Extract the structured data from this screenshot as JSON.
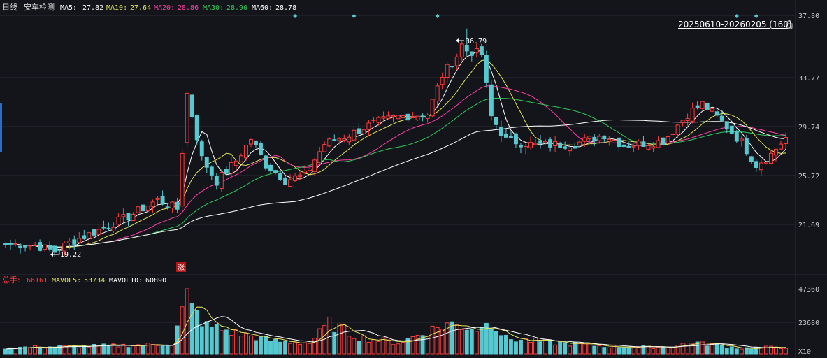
{
  "header": {
    "period": "日线",
    "stock_name": "安车检测",
    "ma": [
      {
        "label": "MA5:",
        "value": "27.82",
        "color": "#ffffff"
      },
      {
        "label": "MA10:",
        "value": "27.64",
        "color": "#e6e65a"
      },
      {
        "label": "MA20:",
        "value": "28.86",
        "color": "#ff3fa6"
      },
      {
        "label": "MA30:",
        "value": "28.90",
        "color": "#2fc95a"
      },
      {
        "label": "MA60:",
        "value": "28.78",
        "color": "#ffffff"
      }
    ],
    "range_label": "20250610-20260205 (160)"
  },
  "volume_header": {
    "items": [
      {
        "label": "总手:",
        "value": "66161",
        "color": "#ff3b3b"
      },
      {
        "label": "MAVOL5:",
        "value": "53734",
        "color": "#e6e65a"
      },
      {
        "label": "MAVOL10:",
        "value": "60890",
        "color": "#ffffff"
      }
    ]
  },
  "markers": {
    "high_label": "36.79",
    "low_label": "19.22",
    "limit_up_tag": "涨"
  },
  "colors": {
    "background": "#14151b",
    "up": "#ff3b3b",
    "down": "#56c8d0",
    "grid": "#2c2c34"
  },
  "chart_data": [
    {
      "type": "candlestick",
      "y_ticks": [
        "37.80",
        "33.77",
        "29.74",
        "25.72",
        "21.69"
      ],
      "ylim": [
        19.22,
        36.79
      ],
      "n_bars": 160,
      "close_anchors": [
        {
          "bar": 0,
          "close": 20.2
        },
        {
          "bar": 6,
          "close": 20.1
        },
        {
          "bar": 10,
          "close": 19.6
        },
        {
          "bar": 13,
          "close": 20.3
        },
        {
          "bar": 18,
          "close": 21.1
        },
        {
          "bar": 25,
          "close": 22.3
        },
        {
          "bar": 31,
          "close": 23.6
        },
        {
          "bar": 35,
          "close": 22.9
        },
        {
          "bar": 37,
          "close": 31.8
        },
        {
          "bar": 40,
          "close": 26.8
        },
        {
          "bar": 43,
          "close": 25.0
        },
        {
          "bar": 47,
          "close": 26.6
        },
        {
          "bar": 50,
          "close": 28.3
        },
        {
          "bar": 53,
          "close": 26.3
        },
        {
          "bar": 57,
          "close": 25.1
        },
        {
          "bar": 61,
          "close": 25.5
        },
        {
          "bar": 65,
          "close": 27.9
        },
        {
          "bar": 70,
          "close": 28.6
        },
        {
          "bar": 75,
          "close": 29.5
        },
        {
          "bar": 80,
          "close": 30.0
        },
        {
          "bar": 86,
          "close": 30.2
        },
        {
          "bar": 89,
          "close": 33.2
        },
        {
          "bar": 93,
          "close": 35.2
        },
        {
          "bar": 97,
          "close": 34.8
        },
        {
          "bar": 99,
          "close": 30.0
        },
        {
          "bar": 102,
          "close": 28.2
        },
        {
          "bar": 108,
          "close": 27.8
        },
        {
          "bar": 116,
          "close": 27.9
        },
        {
          "bar": 122,
          "close": 28.6
        },
        {
          "bar": 126,
          "close": 27.8
        },
        {
          "bar": 134,
          "close": 28.1
        },
        {
          "bar": 139,
          "close": 30.2
        },
        {
          "bar": 142,
          "close": 31.0
        },
        {
          "bar": 146,
          "close": 29.6
        },
        {
          "bar": 150,
          "close": 28.0
        },
        {
          "bar": 153,
          "close": 26.3
        },
        {
          "bar": 156,
          "close": 27.1
        },
        {
          "bar": 159,
          "close": 28.4
        }
      ],
      "series": [
        {
          "name": "MA5",
          "value": 27.82
        },
        {
          "name": "MA10",
          "value": 27.64
        },
        {
          "name": "MA20",
          "value": 28.86
        },
        {
          "name": "MA30",
          "value": 28.9
        },
        {
          "name": "MA60",
          "value": 28.78
        }
      ]
    },
    {
      "type": "bar",
      "y_ticks": [
        "47360",
        "23680",
        "X10"
      ],
      "ylim": [
        0,
        47360
      ],
      "volume_anchors": [
        {
          "bar": 0,
          "vol": 4500
        },
        {
          "bar": 20,
          "vol": 5800
        },
        {
          "bar": 34,
          "vol": 7000
        },
        {
          "bar": 36,
          "vol": 31000
        },
        {
          "bar": 37,
          "vol": 47360
        },
        {
          "bar": 38,
          "vol": 33000
        },
        {
          "bar": 41,
          "vol": 20000
        },
        {
          "bar": 46,
          "vol": 16000
        },
        {
          "bar": 55,
          "vol": 9000
        },
        {
          "bar": 62,
          "vol": 8000
        },
        {
          "bar": 66,
          "vol": 22000
        },
        {
          "bar": 72,
          "vol": 12000
        },
        {
          "bar": 80,
          "vol": 8000
        },
        {
          "bar": 90,
          "vol": 22000
        },
        {
          "bar": 97,
          "vol": 18000
        },
        {
          "bar": 98,
          "vol": 27000
        },
        {
          "bar": 102,
          "vol": 11000
        },
        {
          "bar": 112,
          "vol": 8000
        },
        {
          "bar": 122,
          "vol": 5500
        },
        {
          "bar": 135,
          "vol": 5000
        },
        {
          "bar": 140,
          "vol": 8500
        },
        {
          "bar": 150,
          "vol": 4000
        },
        {
          "bar": 159,
          "vol": 5000
        }
      ],
      "series": [
        {
          "name": "总手",
          "value": 66161
        },
        {
          "name": "MAVOL5",
          "value": 53734
        },
        {
          "name": "MAVOL10",
          "value": 60890
        }
      ]
    }
  ]
}
